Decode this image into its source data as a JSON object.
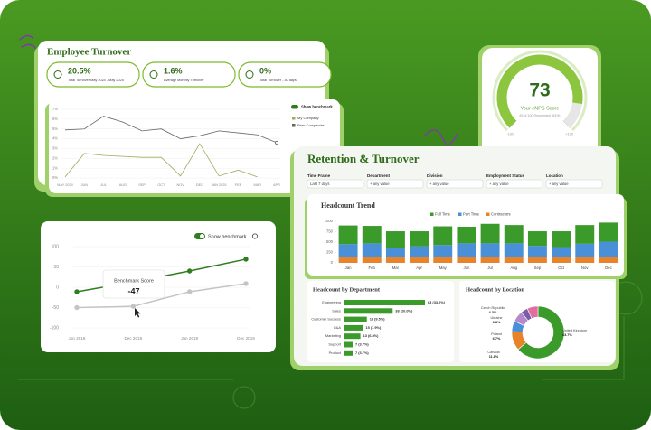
{
  "ui": {
    "employee_turnover": {
      "title": "Employee Turnover",
      "kpis": [
        {
          "value": "20.5%",
          "label": "Total Turnover May 2024 - May 2025"
        },
        {
          "value": "1.6%",
          "label": "Average Monthly Turnover"
        },
        {
          "value": "0%",
          "label": "Total Turnover - 30 days"
        }
      ]
    },
    "retention": {
      "title": "Retention & Turnover",
      "filters": [
        {
          "label": "Time Frame",
          "value": "Last 7 days"
        },
        {
          "label": "Department",
          "value": "+ any value"
        },
        {
          "label": "Division",
          "value": "+ any value"
        },
        {
          "label": "Employment Status",
          "value": "+ any value"
        },
        {
          "label": "Location",
          "value": "+ any value"
        }
      ]
    }
  },
  "chart_data": [
    {
      "type": "line",
      "toggle_label": "Show benchmark",
      "categories": [
        "MAY 2024",
        "JUN",
        "JUL",
        "AUG",
        "SEP",
        "OCT",
        "NOV",
        "DEC",
        "JAN 2025",
        "FEB",
        "MAR",
        "APR"
      ],
      "series": [
        {
          "name": "My Company",
          "color": "#a3a95c",
          "values": [
            0.1,
            2.5,
            2.3,
            2.2,
            2.1,
            2.1,
            0.2,
            3.5,
            0.2,
            0.8,
            0.1,
            null
          ]
        },
        {
          "name": "Peer Companies",
          "color": "#666666",
          "values": [
            4.9,
            5.0,
            6.3,
            5.7,
            4.8,
            5.0,
            4.0,
            4.3,
            4.8,
            4.6,
            4.4,
            3.6
          ]
        }
      ],
      "ylim": [
        0,
        7
      ],
      "yticks": [
        {
          "value": 7,
          "label": "7%"
        },
        {
          "value": 6,
          "label": "6%"
        },
        {
          "value": 5,
          "label": "5%"
        },
        {
          "value": 4,
          "label": "4%"
        },
        {
          "value": 3,
          "label": "3%"
        },
        {
          "value": 2,
          "label": "2%"
        },
        {
          "value": 1,
          "label": "1%"
        },
        {
          "value": 0,
          "label": "0%"
        }
      ],
      "grid": true
    },
    {
      "type": "gauge",
      "value": 73,
      "title": "Your eNPS Score",
      "subtitle": "83 of 100 Responded (83%)",
      "ylim": [
        -100,
        100
      ],
      "yticks": [
        -100,
        {
          "value": 100,
          "label": "+100"
        }
      ],
      "color": "#8cc63f"
    },
    {
      "type": "line",
      "toggle_label": "Show benchmark",
      "tooltip_title": "Benchmark Score",
      "categories": [
        "Jun 2018",
        "Dec 2018",
        "Jun 2019",
        "Dec 2019"
      ],
      "series": [
        {
          "color": "#2e7d1f",
          "values": [
            -11,
            13,
            40,
            69
          ]
        },
        {
          "color": "#c4c4c4",
          "values": [
            -50,
            -47,
            -11,
            9
          ]
        }
      ],
      "ylim": [
        -100,
        100
      ],
      "yticks": [
        100,
        50,
        0,
        -50,
        -100
      ],
      "grid": true
    },
    {
      "type": "bar",
      "stacked": true,
      "title": "Headcount Trend",
      "categories": [
        "Jan",
        "Feb",
        "Mar",
        "Apr",
        "May",
        "Jun",
        "Jul",
        "Aug",
        "Sep",
        "Oct",
        "Nov",
        "Dec"
      ],
      "series": [
        {
          "name": "Full Time",
          "color": "#3a9a2a",
          "values": [
            450,
            420,
            400,
            360,
            450,
            400,
            470,
            440,
            350,
            380,
            450,
            460
          ]
        },
        {
          "name": "Part Time",
          "color": "#4a90d9",
          "values": [
            320,
            330,
            230,
            270,
            300,
            330,
            330,
            340,
            270,
            250,
            330,
            380
          ]
        },
        {
          "name": "Contractors",
          "color": "#e8832a",
          "values": [
            130,
            140,
            130,
            130,
            130,
            140,
            140,
            130,
            140,
            130,
            130,
            130
          ]
        }
      ],
      "ylim": [
        0,
        1000
      ],
      "yticks": [
        0,
        250,
        500,
        750,
        1000
      ]
    },
    {
      "type": "hbar",
      "title": "Headcount by Department",
      "categories": [
        "Engineering",
        "Sales",
        "Customer Success",
        "G&A",
        "Marketing",
        "Support",
        "Product"
      ],
      "values": [
        63,
        38,
        18,
        15,
        13,
        7,
        7
      ],
      "value_labels": [
        "63 (33.2%)",
        "38 (20.0%)",
        "18 (9.5%)",
        "15 (7.9%)",
        "13 (6.8%)",
        "7 (3.7%)",
        "7 (3.7%)"
      ],
      "color": "#3a9a2a"
    },
    {
      "type": "pie",
      "donut": true,
      "title": "Headcount by Location",
      "categories": [
        "United Kingdom",
        "Canada",
        "Poland",
        "Ukraine",
        "Czech Republic",
        null
      ],
      "values": [
        63.7,
        11.8,
        6.7,
        6.8,
        4.3,
        6.7
      ],
      "value_labels": [
        "63.7%",
        "11.8%",
        "6.7%",
        "6.8%",
        "4.3%",
        null
      ],
      "colors": [
        "#3a9a2a",
        "#e8832a",
        "#4a90d9",
        "#b58acb",
        "#7a5ca8",
        "#e06f9f"
      ]
    }
  ]
}
